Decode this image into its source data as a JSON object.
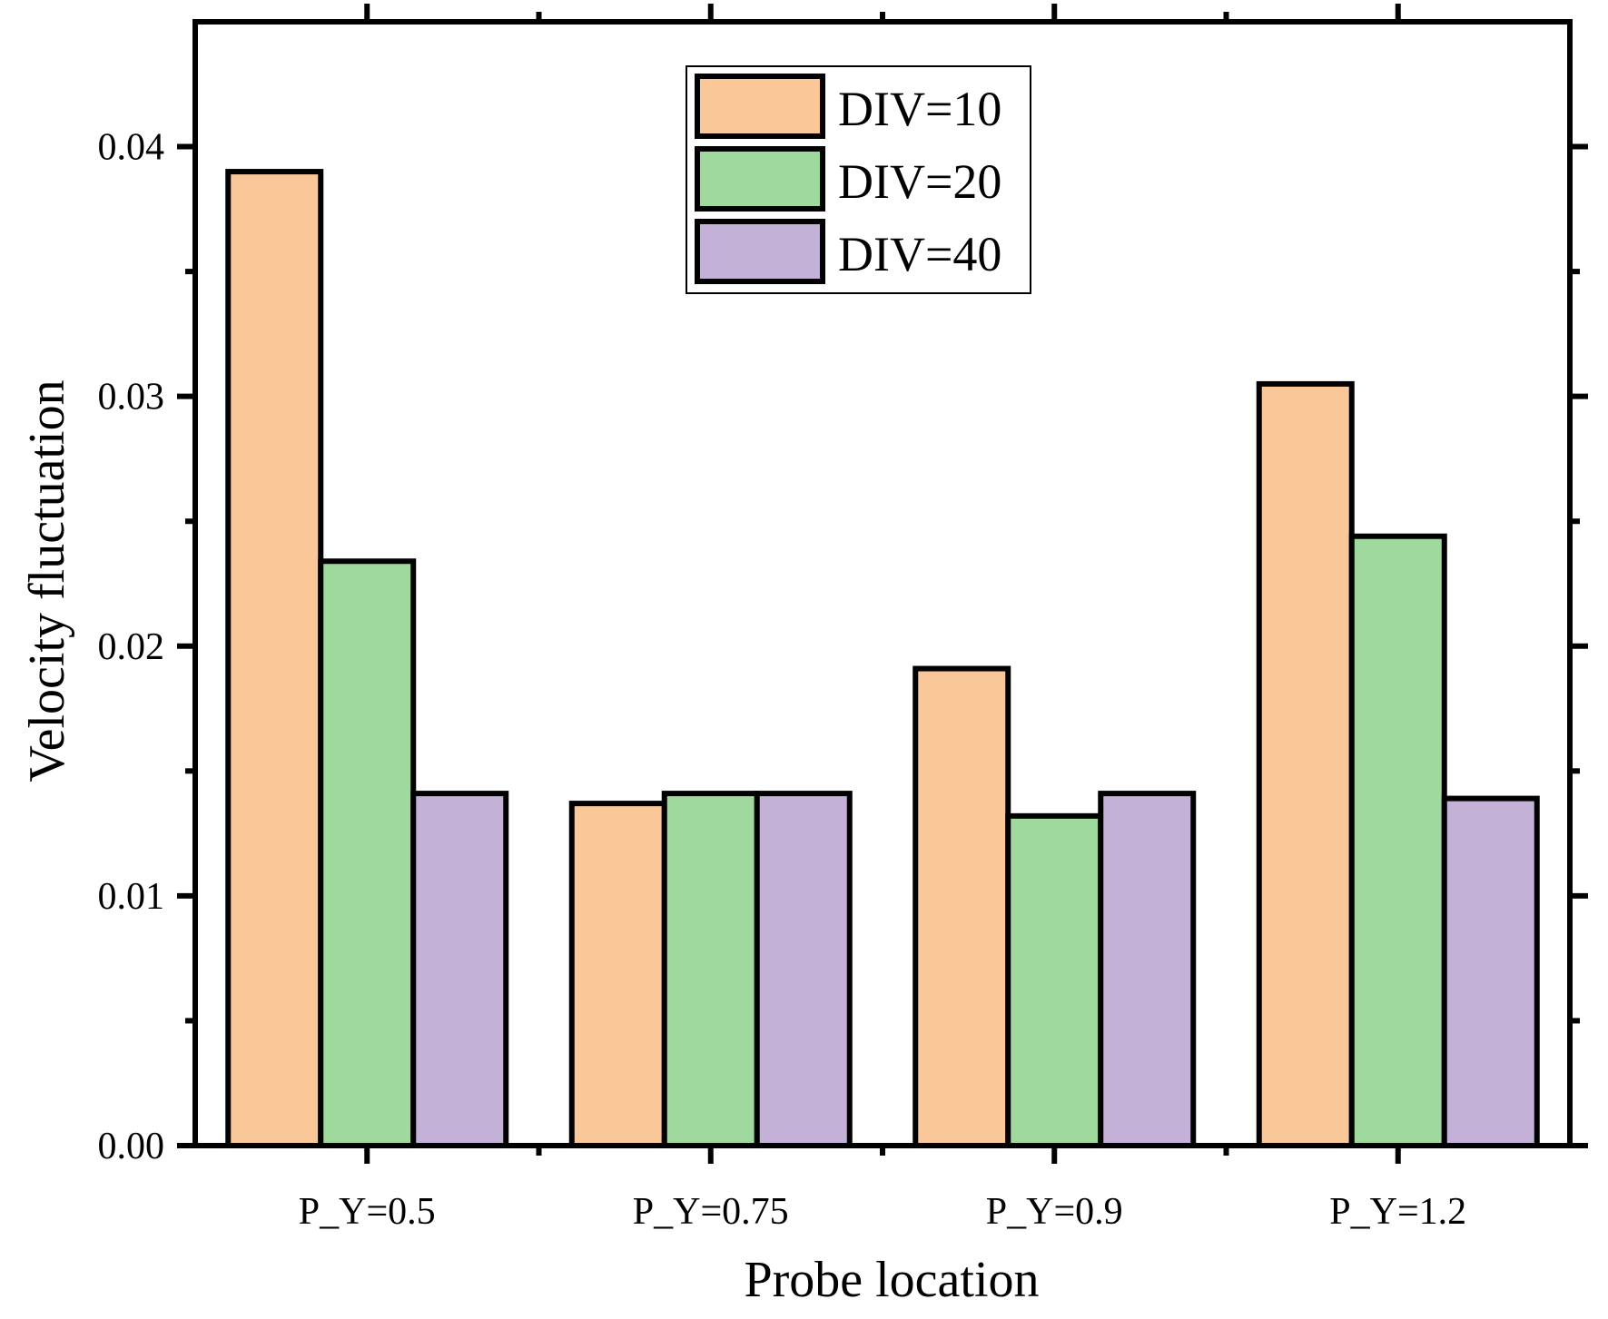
{
  "chart_data": {
    "type": "bar",
    "title": "",
    "xlabel": "Probe location",
    "ylabel": "Velocity fluctuation",
    "categories": [
      "P_Y=0.5",
      "P_Y=0.75",
      "P_Y=0.9",
      "P_Y=1.2"
    ],
    "series": [
      {
        "name": "DIV=10",
        "color": "#FAC898",
        "values": [
          0.039,
          0.0137,
          0.0191,
          0.0305
        ]
      },
      {
        "name": "DIV=20",
        "color": "#9FD99E",
        "values": [
          0.0234,
          0.0141,
          0.0132,
          0.0244
        ]
      },
      {
        "name": "DIV=40",
        "color": "#C3B1D7",
        "values": [
          0.0141,
          0.0141,
          0.0141,
          0.0139
        ]
      }
    ],
    "ylim": [
      0,
      0.045
    ],
    "yticks": [
      {
        "value": 0,
        "label": "0.00"
      },
      {
        "value": 0.01,
        "label": "0.01"
      },
      {
        "value": 0.02,
        "label": "0.02"
      },
      {
        "value": 0.03,
        "label": "0.03"
      },
      {
        "value": 0.04,
        "label": "0.04"
      }
    ],
    "grid": false,
    "legend_position": "top-center"
  }
}
